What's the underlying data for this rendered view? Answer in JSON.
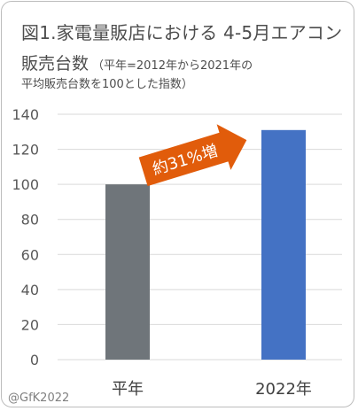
{
  "title": {
    "line1": "図1.家電量販店における 4-5月エアコン",
    "line2_main": "販売台数",
    "line2_sub": "（平年=2012年から2021年の",
    "line3": "平均販売台数を100とした指数）"
  },
  "credit": "@GfK2022",
  "annotation": "約31%増",
  "colors": {
    "bar_normal": "#6f757a",
    "bar_2022": "#4472c4",
    "arrow": "#e15c0b",
    "axis_text": "#595959",
    "grid": "#d9d9d9"
  },
  "chart_data": {
    "type": "bar",
    "categories": [
      "平年",
      "2022年"
    ],
    "values": [
      100,
      131
    ],
    "ylim": [
      0,
      140
    ],
    "yticks": [
      0,
      20,
      40,
      60,
      80,
      100,
      120,
      140
    ],
    "grid": true,
    "title": "図1.家電量販店における 4-5月エアコン販売台数",
    "xlabel": "",
    "ylabel": ""
  }
}
